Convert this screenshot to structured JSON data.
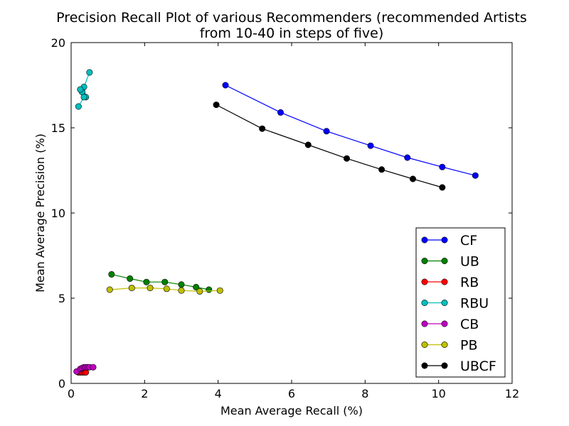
{
  "chart_data": {
    "type": "scatter",
    "title_lines": [
      "Precision Recall Plot of various Recommenders (recommended Artists",
      "from 10-40 in steps of five)"
    ],
    "xlabel": "Mean Average Recall (%)",
    "ylabel": "Mean Average Precision (%)",
    "xlim": [
      0,
      12
    ],
    "ylim": [
      0,
      20
    ],
    "xticks": [
      0,
      2,
      4,
      6,
      8,
      10,
      12
    ],
    "yticks": [
      0,
      5,
      10,
      15,
      20
    ],
    "grid": false,
    "legend_position": "lower-right",
    "series": [
      {
        "name": "CF",
        "color": "#0000ff",
        "x": [
          4.2,
          5.7,
          6.95,
          8.15,
          9.15,
          10.1,
          11.0
        ],
        "y": [
          17.5,
          15.9,
          14.8,
          13.95,
          13.25,
          12.7,
          12.2
        ]
      },
      {
        "name": "UB",
        "color": "#008000",
        "x": [
          1.1,
          1.6,
          2.05,
          2.55,
          3.0,
          3.4,
          3.75
        ],
        "y": [
          6.4,
          6.15,
          5.95,
          5.95,
          5.8,
          5.65,
          5.5
        ]
      },
      {
        "name": "RB",
        "color": "#ff0000",
        "x": [
          0.2,
          0.25,
          0.3,
          0.35,
          0.4
        ],
        "y": [
          0.65,
          0.65,
          0.65,
          0.65,
          0.65
        ]
      },
      {
        "name": "RBU",
        "color": "#00bfbf",
        "x": [
          0.5,
          0.35,
          0.4,
          0.3,
          0.25,
          0.35,
          0.2
        ],
        "y": [
          18.25,
          17.4,
          16.8,
          17.1,
          17.25,
          16.8,
          16.25
        ]
      },
      {
        "name": "CB",
        "color": "#bf00bf",
        "x": [
          0.15,
          0.25,
          0.3,
          0.35,
          0.4,
          0.45,
          0.5,
          0.6
        ],
        "y": [
          0.7,
          0.85,
          0.9,
          0.95,
          0.95,
          0.95,
          0.95,
          0.95
        ]
      },
      {
        "name": "PB",
        "color": "#bfbf00",
        "x": [
          1.05,
          1.65,
          2.15,
          2.6,
          3.0,
          3.5,
          4.05
        ],
        "y": [
          5.5,
          5.6,
          5.6,
          5.55,
          5.45,
          5.4,
          5.45
        ]
      },
      {
        "name": "UBCF",
        "color": "#000000",
        "x": [
          3.95,
          5.2,
          6.45,
          7.5,
          8.45,
          9.3,
          10.1
        ],
        "y": [
          16.35,
          14.95,
          14.0,
          13.2,
          12.55,
          12.0,
          11.5
        ]
      }
    ]
  }
}
